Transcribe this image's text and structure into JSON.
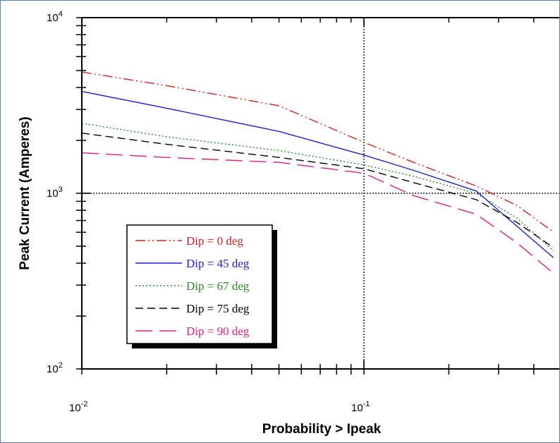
{
  "chart_data": {
    "type": "line",
    "title": "",
    "xlabel": "Probability > Ipeak",
    "ylabel": "Peak Current (Amperes)",
    "xscale": "log",
    "yscale": "log",
    "xlim": [
      0.01,
      0.47
    ],
    "ylim": [
      100,
      10000
    ],
    "grid": "major lines at x = 0.1 and y = 1000 (dotted grey)",
    "legend_position": "lower-left",
    "x_ticks": [
      {
        "base": "10",
        "exp": "-2",
        "value": 0.01
      },
      {
        "base": "10",
        "exp": "-1",
        "value": 0.1
      }
    ],
    "y_ticks": [
      {
        "base": "10",
        "exp": "2",
        "value": 100
      },
      {
        "base": "10",
        "exp": "3",
        "value": 1000
      },
      {
        "base": "10",
        "exp": "4",
        "value": 10000
      }
    ],
    "series": [
      {
        "name": "Dip = 0 deg",
        "color": "#d42020",
        "dash": "dash-dot-dot",
        "points": [
          [
            0.01,
            4900
          ],
          [
            0.02,
            4100
          ],
          [
            0.05,
            3150
          ],
          [
            0.1,
            1950
          ],
          [
            0.15,
            1500
          ],
          [
            0.25,
            1100
          ],
          [
            0.35,
            850
          ],
          [
            0.47,
            600
          ]
        ]
      },
      {
        "name": "Dip = 45 deg",
        "color": "#2020cc",
        "dash": "solid",
        "points": [
          [
            0.01,
            3800
          ],
          [
            0.02,
            3050
          ],
          [
            0.05,
            2250
          ],
          [
            0.1,
            1650
          ],
          [
            0.15,
            1350
          ],
          [
            0.25,
            1030
          ],
          [
            0.3,
            800
          ],
          [
            0.47,
            430
          ]
        ]
      },
      {
        "name": "Dip = 67 deg",
        "color": "#2a8a2a",
        "dash": "dotted",
        "points": [
          [
            0.01,
            2500
          ],
          [
            0.02,
            2100
          ],
          [
            0.05,
            1750
          ],
          [
            0.1,
            1450
          ],
          [
            0.15,
            1250
          ],
          [
            0.25,
            1000
          ],
          [
            0.35,
            720
          ],
          [
            0.47,
            470
          ]
        ]
      },
      {
        "name": "Dip = 75 deg",
        "color": "#000000",
        "dash": "dashed",
        "points": [
          [
            0.01,
            2200
          ],
          [
            0.02,
            1900
          ],
          [
            0.05,
            1600
          ],
          [
            0.1,
            1380
          ],
          [
            0.15,
            1150
          ],
          [
            0.25,
            920
          ],
          [
            0.35,
            680
          ],
          [
            0.47,
            490
          ]
        ]
      },
      {
        "name": "Dip = 90 deg",
        "color": "#e0207a",
        "dash": "long-dash",
        "points": [
          [
            0.01,
            1700
          ],
          [
            0.02,
            1600
          ],
          [
            0.05,
            1500
          ],
          [
            0.1,
            1300
          ],
          [
            0.15,
            970
          ],
          [
            0.25,
            760
          ],
          [
            0.35,
            520
          ],
          [
            0.47,
            350
          ]
        ]
      }
    ]
  }
}
